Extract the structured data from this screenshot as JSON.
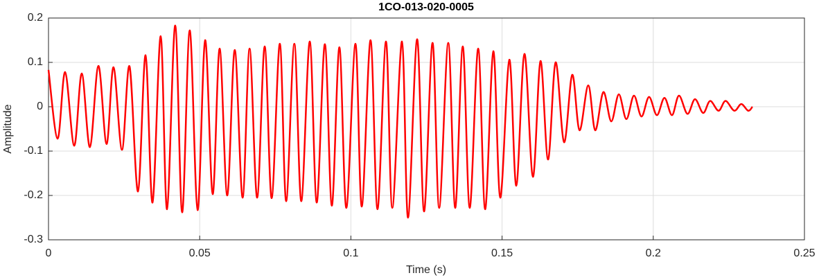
{
  "chart_data": {
    "type": "line",
    "title": "1CO-013-020-0005",
    "xlabel": "Time (s)",
    "ylabel": "Amplitude",
    "xlim": [
      0,
      0.25
    ],
    "ylim": [
      -0.3,
      0.2
    ],
    "xticks": [
      0,
      0.05,
      0.1,
      0.15,
      0.2,
      0.25
    ],
    "yticks": [
      -0.3,
      -0.2,
      -0.1,
      0,
      0.1,
      0.2
    ],
    "grid": true,
    "series": [
      {
        "color": "#ff0000",
        "x": [
          0,
          0.003,
          0.0055,
          0.0085,
          0.011,
          0.0137,
          0.0165,
          0.0192,
          0.0215,
          0.0243,
          0.0268,
          0.0296,
          0.0321,
          0.0344,
          0.0371,
          0.0392,
          0.0419,
          0.0442,
          0.0467,
          0.0493,
          0.0518,
          0.0543,
          0.0566,
          0.0591,
          0.0616,
          0.0642,
          0.0665,
          0.069,
          0.0715,
          0.0738,
          0.0765,
          0.0786,
          0.0813,
          0.0836,
          0.0864,
          0.0887,
          0.0914,
          0.0937,
          0.0962,
          0.0985,
          0.1015,
          0.1036,
          0.1065,
          0.1088,
          0.1116,
          0.1137,
          0.1169,
          0.1189,
          0.1219,
          0.1242,
          0.127,
          0.1292,
          0.1322,
          0.1345,
          0.137,
          0.1393,
          0.1421,
          0.1444,
          0.1471,
          0.1494,
          0.1524,
          0.1547,
          0.1574,
          0.1602,
          0.1627,
          0.1652,
          0.1677,
          0.1705,
          0.1732,
          0.1756,
          0.1785,
          0.1808,
          0.1835,
          0.1861,
          0.1886,
          0.1911,
          0.1936,
          0.1961,
          0.1986,
          0.2012,
          0.2037,
          0.2062,
          0.2085,
          0.2113,
          0.2138,
          0.2165,
          0.2188,
          0.2216,
          0.2239,
          0.2268,
          0.2291,
          0.2314,
          0.2328
        ],
        "values": [
          0.083,
          -0.072,
          0.078,
          -0.088,
          0.075,
          -0.091,
          0.092,
          -0.084,
          0.089,
          -0.097,
          0.091,
          -0.191,
          0.116,
          -0.216,
          0.159,
          -0.231,
          0.183,
          -0.238,
          0.172,
          -0.233,
          0.15,
          -0.197,
          0.131,
          -0.2,
          0.128,
          -0.205,
          0.131,
          -0.205,
          0.136,
          -0.206,
          0.142,
          -0.213,
          0.142,
          -0.213,
          0.147,
          -0.216,
          0.141,
          -0.223,
          0.134,
          -0.228,
          0.142,
          -0.225,
          0.15,
          -0.231,
          0.147,
          -0.228,
          0.147,
          -0.25,
          0.152,
          -0.236,
          0.144,
          -0.228,
          0.144,
          -0.228,
          0.136,
          -0.228,
          0.131,
          -0.231,
          0.125,
          -0.205,
          0.106,
          -0.178,
          0.119,
          -0.158,
          0.103,
          -0.119,
          0.1,
          -0.08,
          0.072,
          -0.053,
          0.048,
          -0.053,
          0.033,
          -0.033,
          0.028,
          -0.028,
          0.025,
          -0.022,
          0.022,
          -0.019,
          0.02,
          -0.019,
          0.025,
          -0.016,
          0.017,
          -0.014,
          0.013,
          -0.009,
          0.013,
          -0.009,
          0.006,
          -0.009,
          0
        ]
      }
    ]
  }
}
